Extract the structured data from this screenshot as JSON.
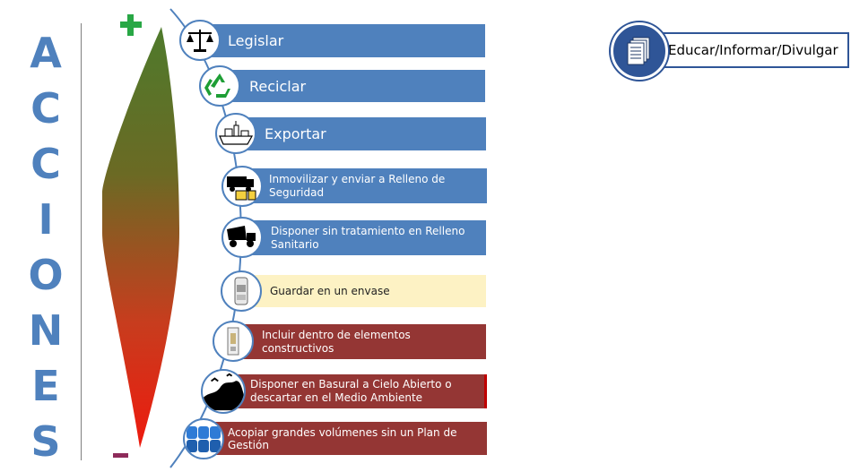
{
  "left_title": [
    "A",
    "C",
    "C",
    "I",
    "O",
    "N",
    "E",
    "S"
  ],
  "actions": [
    {
      "label": "Legislar",
      "icon": "scales-icon",
      "color": "#4f81bd"
    },
    {
      "label": "Reciclar",
      "icon": "recycle-icon",
      "color": "#4f81bd"
    },
    {
      "label": "Exportar",
      "icon": "ship-icon",
      "color": "#4f81bd"
    },
    {
      "label": "Inmovilizar y enviar a Relleno de Seguridad",
      "icon": "truck-barrel-icon",
      "color": "#4f81bd"
    },
    {
      "label": "Disponer sin tratamiento en Relleno Sanitario",
      "icon": "dump-truck-icon",
      "color": "#4f81bd"
    },
    {
      "label": "Guardar en un envase",
      "icon": "container-icon",
      "color": "#fdf2c4"
    },
    {
      "label": "Incluir dentro de elementos constructivos",
      "icon": "construction-block-icon",
      "color": "#943634"
    },
    {
      "label": "Disponer en Basural a Cielo Abierto o descartar en el Medio Ambiente",
      "icon": "dump-scene-icon",
      "color": "#943634"
    },
    {
      "label": "Acopiar grandes volúmenes sin un Plan de Gestión",
      "icon": "barrels-icon",
      "color": "#943634"
    }
  ],
  "side_box": {
    "label": "Educar/Informar/Divulgar",
    "icon": "documents-icon"
  }
}
